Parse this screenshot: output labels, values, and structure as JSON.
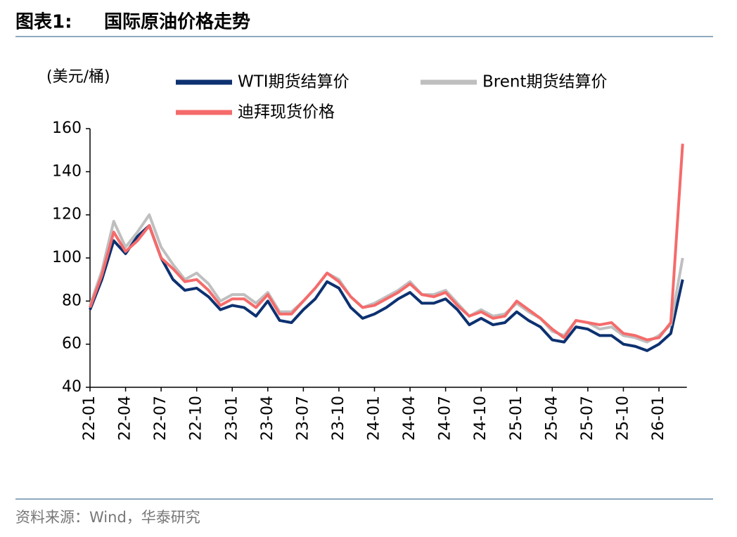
{
  "header": {
    "label": "图表1:",
    "title": "国际原油价格走势"
  },
  "chart_data": {
    "type": "line",
    "y_label": "(美元/桶)",
    "categories": [
      "22-01",
      null,
      null,
      "22-04",
      null,
      null,
      "22-07",
      null,
      null,
      "22-10",
      null,
      null,
      "23-01",
      null,
      null,
      "23-04",
      null,
      null,
      "23-07",
      null,
      null,
      "23-10",
      null,
      null,
      "24-01",
      null,
      null,
      "24-04",
      null,
      null,
      "24-07",
      null,
      null,
      "24-10",
      null,
      null,
      "25-01",
      null,
      null,
      "25-04",
      null,
      null,
      "25-07",
      null,
      null,
      "25-10",
      null,
      null,
      "26-01",
      null,
      null
    ],
    "series": [
      {
        "name": "WTI期货结算价",
        "color": "#0d3170",
        "values": [
          76,
          90,
          108,
          102,
          110,
          115,
          100,
          90,
          85,
          86,
          82,
          76,
          78,
          77,
          73,
          80,
          71,
          70,
          76,
          81,
          89,
          86,
          77,
          72,
          74,
          77,
          81,
          84,
          79,
          79,
          81,
          76,
          69,
          72,
          69,
          70,
          75,
          71,
          68,
          62,
          61,
          68,
          67,
          64,
          64,
          60,
          59,
          57,
          60,
          65,
          90
        ]
      },
      {
        "name": "Brent期货结算价",
        "color": "#bfbfbf",
        "values": [
          78,
          94,
          117,
          105,
          112,
          120,
          105,
          97,
          90,
          93,
          88,
          80,
          83,
          83,
          79,
          84,
          75,
          75,
          80,
          86,
          93,
          90,
          82,
          77,
          79,
          82,
          85,
          89,
          83,
          83,
          85,
          79,
          73,
          76,
          73,
          74,
          79,
          75,
          72,
          66,
          64,
          71,
          70,
          67,
          68,
          64,
          63,
          61,
          64,
          69,
          100
        ]
      },
      {
        "name": "迪拜现货价格",
        "color": "#f56b6b",
        "values": [
          77,
          92,
          112,
          103,
          108,
          115,
          100,
          95,
          89,
          90,
          85,
          78,
          81,
          81,
          77,
          83,
          74,
          74,
          80,
          86,
          93,
          89,
          82,
          77,
          78,
          81,
          84,
          88,
          83,
          82,
          84,
          78,
          73,
          75,
          72,
          73,
          80,
          76,
          72,
          67,
          63,
          71,
          70,
          69,
          70,
          65,
          64,
          62,
          63,
          70,
          153
        ]
      }
    ],
    "ylim": [
      40,
      160
    ],
    "yticks": [
      40,
      60,
      80,
      100,
      120,
      140,
      160
    ],
    "grid": false
  },
  "footer": {
    "source": "资料来源：Wind，华泰研究"
  }
}
